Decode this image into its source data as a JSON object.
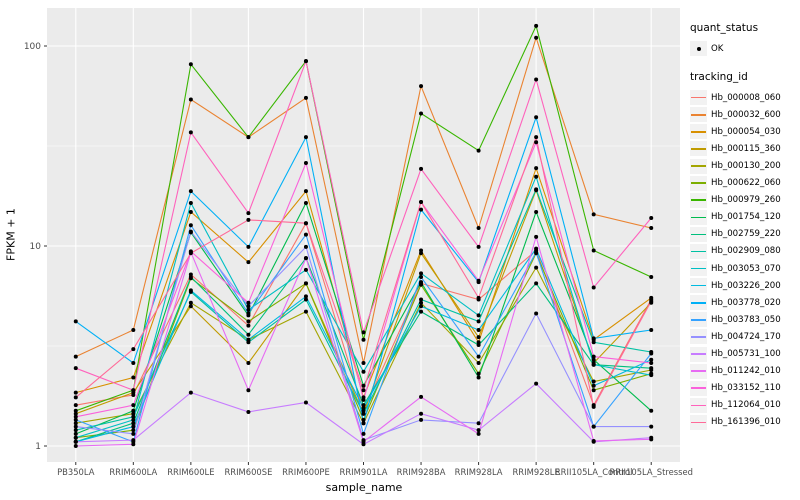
{
  "axes": {
    "y_title": "FPKM + 1",
    "x_title": "sample_name",
    "y_tick_labels": [
      "1",
      "10",
      "100"
    ],
    "y_tick_values": [
      1,
      10,
      100
    ],
    "y_minor_values": [
      3.162,
      31.62
    ]
  },
  "legend": {
    "quant_title": "quant_status",
    "quant_item": "OK",
    "tracking_title": "tracking_id"
  },
  "style": {
    "panel_bg": "#EBEBEB",
    "grid_color": "#FFFFFF",
    "point_color": "#000000",
    "tick_text_color": "#4D4D4D",
    "legend_key_bg": "#F2F2F2"
  },
  "chart_data": {
    "type": "line",
    "title": "",
    "xlabel": "sample_name",
    "ylabel": "FPKM + 1",
    "y_scale": "log10",
    "ylim": [
      0.83,
      155
    ],
    "grid": true,
    "legend_position": "right",
    "point_marker": "black dot (quant_status = OK)",
    "categories": [
      "PB350LA",
      "RRIM600LA",
      "RRIM600LE",
      "RRIM600SE",
      "RRIM600PE",
      "RRIM901LA",
      "RRIM928BA",
      "RRIM928LA",
      "RRIM928LE",
      "RRII105LA_Control",
      "RRII105LA_Stressed"
    ],
    "series": [
      {
        "name": "Hb_000008_060",
        "color": "#F8766D",
        "values": [
          1.6,
          1.8,
          7.2,
          4.0,
          13.0,
          1.5,
          6.5,
          5.4,
          9.5,
          1.6,
          5.4
        ]
      },
      {
        "name": "Hb_000032_600",
        "color": "#EA8331",
        "values": [
          2.8,
          3.8,
          54,
          35,
          55,
          2.6,
          63,
          12.3,
          110,
          14.4,
          12.3
        ]
      },
      {
        "name": "Hb_000054_030",
        "color": "#D89000",
        "values": [
          1.85,
          2.2,
          14.8,
          8.3,
          18.8,
          1.75,
          9.5,
          3.3,
          24.5,
          3.4,
          5.5
        ]
      },
      {
        "name": "Hb_000115_360",
        "color": "#C09B00",
        "values": [
          1.45,
          1.85,
          5.0,
          2.6,
          6.5,
          1.45,
          9.2,
          3.5,
          19.0,
          2.6,
          5.2
        ]
      },
      {
        "name": "Hb_000130_200",
        "color": "#A3A500",
        "values": [
          1.3,
          1.45,
          5.2,
          3.4,
          4.7,
          1.3,
          5.2,
          2.6,
          7.8,
          2.1,
          2.4
        ]
      },
      {
        "name": "Hb_000622_060",
        "color": "#7CAE00",
        "values": [
          1.1,
          1.2,
          6.9,
          4.2,
          6.5,
          1.35,
          6.4,
          2.3,
          9.2,
          1.9,
          2.3
        ]
      },
      {
        "name": "Hb_000979_260",
        "color": "#39B600",
        "values": [
          1.5,
          1.9,
          81,
          35,
          84,
          3.4,
          46,
          30,
          126,
          9.5,
          7.0
        ]
      },
      {
        "name": "Hb_001754_120",
        "color": "#00BB4E",
        "values": [
          1.15,
          1.5,
          11.7,
          4.5,
          16.4,
          2.0,
          6.6,
          2.2,
          14.8,
          2.7,
          1.5
        ]
      },
      {
        "name": "Hb_002759_220",
        "color": "#00BF7D",
        "values": [
          1.05,
          1.3,
          7.0,
          3.6,
          8.7,
          1.6,
          4.7,
          3.2,
          6.5,
          2.55,
          2.45
        ]
      },
      {
        "name": "Hb_002909_080",
        "color": "#00C1A3",
        "values": [
          1.2,
          1.4,
          5.9,
          3.3,
          5.4,
          1.45,
          5.4,
          4.2,
          19.2,
          3.3,
          2.95
        ]
      },
      {
        "name": "Hb_003053_070",
        "color": "#00BFC4",
        "values": [
          1.1,
          1.35,
          16.4,
          4.8,
          7.6,
          2.35,
          7.3,
          4.5,
          22.2,
          2.55,
          2.26
        ]
      },
      {
        "name": "Hb_003226_200",
        "color": "#00BAE0",
        "values": [
          1.05,
          1.25,
          6.0,
          3.4,
          5.6,
          1.55,
          5.0,
          3.8,
          9.7,
          2.0,
          2.7
        ]
      },
      {
        "name": "Hb_003778_020",
        "color": "#00B0F6",
        "values": [
          4.2,
          2.6,
          18.8,
          9.9,
          35,
          1.3,
          15.2,
          6.6,
          44,
          3.45,
          3.8
        ]
      },
      {
        "name": "Hb_003783_050",
        "color": "#35A2FF",
        "values": [
          1.35,
          1.05,
          12.7,
          4.6,
          11.4,
          1.15,
          7.0,
          2.8,
          9.3,
          1.25,
          2.9
        ]
      },
      {
        "name": "Hb_004724_170",
        "color": "#9590FF",
        "values": [
          1.25,
          1.15,
          11.8,
          5.0,
          9.9,
          1.07,
          1.35,
          1.3,
          4.6,
          1.25,
          1.25
        ]
      },
      {
        "name": "Hb_005731_100",
        "color": "#C77CFF",
        "values": [
          1.05,
          1.07,
          1.85,
          1.48,
          1.65,
          1.02,
          1.45,
          1.2,
          2.05,
          1.05,
          1.1
        ]
      },
      {
        "name": "Hb_011242_010",
        "color": "#E76BF3",
        "values": [
          1.0,
          1.02,
          9.3,
          1.9,
          8.7,
          1.05,
          1.76,
          1.15,
          11.1,
          1.06,
          1.08
        ]
      },
      {
        "name": "Hb_033152_110",
        "color": "#FA62DB",
        "values": [
          1.4,
          1.6,
          9.4,
          5.2,
          26,
          1.7,
          16.6,
          6.7,
          33,
          2.8,
          2.6
        ]
      },
      {
        "name": "Hb_112064_010",
        "color": "#FF62BC",
        "values": [
          2.45,
          1.9,
          37,
          14.6,
          84,
          3.7,
          24.3,
          9.9,
          68,
          6.2,
          13.8
        ]
      },
      {
        "name": "Hb_161396_010",
        "color": "#FF6A98",
        "values": [
          1.75,
          3.05,
          9.2,
          13.5,
          13,
          1.9,
          16.6,
          5.5,
          35,
          1.57,
          5.3
        ]
      }
    ]
  }
}
